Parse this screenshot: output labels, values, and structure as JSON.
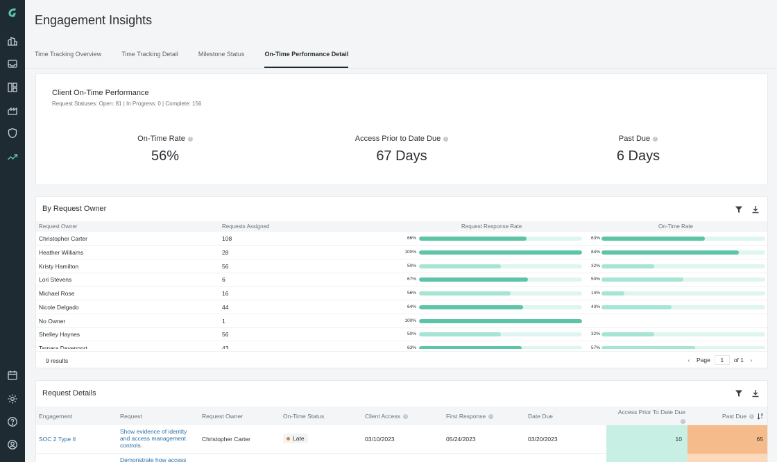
{
  "colors": {
    "rail": "#1f2b33",
    "bar_dark": "#5ec4a7",
    "bar_light": "#a6e4d4",
    "track": "#dff5ef",
    "late": "#d9843b",
    "cell_teal": "#c8efe4",
    "cell_orange": "#f5bb8b"
  },
  "rail_icons": [
    "logo-icon",
    "buildings-icon",
    "inbox-icon",
    "layout-icon",
    "factory-icon",
    "shield-icon",
    "trend-icon",
    "calendar-icon",
    "gear-icon",
    "help-icon",
    "user-circle-icon"
  ],
  "page": {
    "title": "Engagement Insights",
    "tabs": [
      "Time Tracking Overview",
      "Time Tracking Detail",
      "Milestone Status",
      "On-Time Performance Detail"
    ]
  },
  "summary": {
    "title": "Client On-Time Performance",
    "subtitle": "Request Statuses: Open: 81 | In Progress: 0 | Complete: 156",
    "kpis": [
      {
        "label": "On-Time Rate",
        "value": "56%"
      },
      {
        "label": "Access Prior to Date Due",
        "value": "67 Days"
      },
      {
        "label": "Past Due",
        "value": "6 Days"
      }
    ]
  },
  "owner_table": {
    "title": "By Request Owner",
    "headers": [
      "Request Owner",
      "Requests Assigned",
      "Request Response Rate",
      "On-Time Rate"
    ],
    "rows": [
      {
        "owner": "Christopher Carter",
        "assigned": "108",
        "response": 66,
        "response_label": "66%",
        "ontime": 63,
        "ontime_label": "63%"
      },
      {
        "owner": "Heather Williams",
        "assigned": "28",
        "response": 100,
        "response_label": "100%",
        "ontime": 84,
        "ontime_label": "84%"
      },
      {
        "owner": "Kristy Hamilton",
        "assigned": "56",
        "response": 50,
        "response_label": "50%",
        "ontime": 32,
        "ontime_label": "32%"
      },
      {
        "owner": "Lori Stevens",
        "assigned": "6",
        "response": 67,
        "response_label": "67%",
        "ontime": 50,
        "ontime_label": "50%"
      },
      {
        "owner": "Michael Rose",
        "assigned": "16",
        "response": 56,
        "response_label": "56%",
        "ontime": 14,
        "ontime_label": "14%"
      },
      {
        "owner": "Nicole Delgado",
        "assigned": "44",
        "response": 64,
        "response_label": "64%",
        "ontime": 43,
        "ontime_label": "43%"
      },
      {
        "owner": "No Owner",
        "assigned": "1",
        "response": 100,
        "response_label": "100%",
        "ontime": null,
        "ontime_label": ""
      },
      {
        "owner": "Shelley Haynes",
        "assigned": "56",
        "response": 50,
        "response_label": "50%",
        "ontime": 32,
        "ontime_label": "32%"
      },
      {
        "owner": "Tamara Davenport",
        "assigned": "43",
        "response": 63,
        "response_label": "63%",
        "ontime": 57,
        "ontime_label": "57%"
      }
    ],
    "results": "9 results",
    "page_label": "Page",
    "page_value": "1",
    "page_of": "of 1"
  },
  "details": {
    "title": "Request Details",
    "headers": [
      "Engagement",
      "Request",
      "Request Owner",
      "On-Time Status",
      "Client Access",
      "First Response",
      "Date Due",
      "Access Prior To Date Due",
      "Past Due"
    ],
    "rows": [
      {
        "engagement": "SOC 2 Type II",
        "request": "Show evidence of identity and access management controls.",
        "owner": "Christopher Carter",
        "status": "Late",
        "client_access": "03/10/2023",
        "first_response": "05/24/2023",
        "date_due": "03/20/2023",
        "access_prior": "10",
        "past_due": "65"
      },
      {
        "engagement": "",
        "request": "Demonstrate how access",
        "owner": "",
        "status": "",
        "client_access": "",
        "first_response": "",
        "date_due": "",
        "access_prior": "",
        "past_due": ""
      }
    ]
  }
}
